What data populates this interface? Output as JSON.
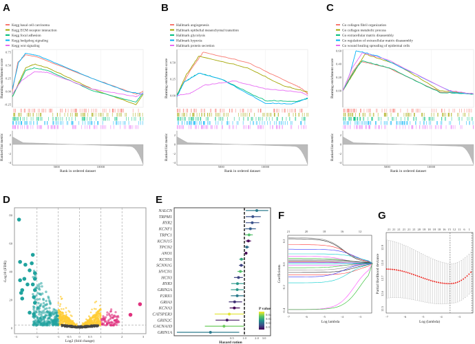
{
  "panels": {
    "a": "A",
    "b": "B",
    "c": "C",
    "d": "D",
    "e": "E",
    "f": "F",
    "g": "G"
  },
  "chart_data": [
    {
      "id": "A",
      "type": "line",
      "title": "",
      "xlabel": "Rank in ordered dataset",
      "ylabel": "Running enrichment score",
      "ylabel2": "Ranked list metric",
      "xlim": [
        0,
        14800
      ],
      "xticks": [
        5000,
        10000
      ],
      "ylim": [
        -0.3,
        0.8
      ],
      "yticks": [
        0.75,
        0.5,
        0.25,
        0,
        -0.25
      ],
      "metric_ticks": [
        2,
        0,
        -2,
        -4
      ],
      "legend_position": "top-left",
      "series": [
        {
          "name": "Kegg basal cell carcinoma",
          "color": "#f8766d",
          "points": [
            [
              0,
              0
            ],
            [
              600,
              0.55
            ],
            [
              1500,
              0.7
            ],
            [
              2800,
              0.66
            ],
            [
              9000,
              0.25
            ],
            [
              14000,
              -0.05
            ],
            [
              14800,
              0
            ]
          ]
        },
        {
          "name": "Kegg ECM receptor interaction",
          "color": "#a3a500",
          "points": [
            [
              0,
              -0.1
            ],
            [
              1500,
              0.45
            ],
            [
              2500,
              0.52
            ],
            [
              4000,
              0.45
            ],
            [
              9000,
              0.05
            ],
            [
              14000,
              -0.25
            ],
            [
              14800,
              -0.05
            ]
          ]
        },
        {
          "name": "Kegg focal adhesion",
          "color": "#00bf7d",
          "points": [
            [
              0,
              -0.1
            ],
            [
              1500,
              0.4
            ],
            [
              2500,
              0.45
            ],
            [
              4000,
              0.4
            ],
            [
              9000,
              0.02
            ],
            [
              14000,
              -0.2
            ],
            [
              14800,
              -0.02
            ]
          ]
        },
        {
          "name": "Kegg hedgehog signaling",
          "color": "#00b0f6",
          "points": [
            [
              0,
              0.05
            ],
            [
              700,
              0.55
            ],
            [
              1500,
              0.73
            ],
            [
              3000,
              0.68
            ],
            [
              9000,
              0.25
            ],
            [
              13000,
              0
            ],
            [
              14800,
              -0.05
            ]
          ]
        },
        {
          "name": "Kegg wnt signaling",
          "color": "#e76bf3",
          "points": [
            [
              0,
              -0.05
            ],
            [
              1000,
              0.2
            ],
            [
              2500,
              0.38
            ],
            [
              4000,
              0.36
            ],
            [
              9000,
              0.05
            ],
            [
              14000,
              -0.1
            ],
            [
              14800,
              -0.03
            ]
          ]
        }
      ]
    },
    {
      "id": "B",
      "type": "line",
      "title": "",
      "xlabel": "Rank in ordered dataset",
      "ylabel": "Running enrichment score",
      "ylabel2": "Ranked list metric",
      "xlim": [
        0,
        14800
      ],
      "xticks": [
        5000,
        10000
      ],
      "ylim": [
        -0.18,
        0.7
      ],
      "yticks": [
        0.5,
        0.25,
        0
      ],
      "metric_ticks": [
        2,
        0,
        -2,
        -4
      ],
      "legend_position": "top-left",
      "series": [
        {
          "name": "Hallmark angiogenesis",
          "color": "#f8766d",
          "points": [
            [
              0,
              0
            ],
            [
              1500,
              0.38
            ],
            [
              3000,
              0.66
            ],
            [
              8000,
              0.5
            ],
            [
              13000,
              0.18
            ],
            [
              14200,
              0.1
            ],
            [
              14800,
              0.02
            ]
          ]
        },
        {
          "name": "Hallmark epithelial mesenchymal transition",
          "color": "#a3a500",
          "points": [
            [
              0,
              0
            ],
            [
              1000,
              0.3
            ],
            [
              2500,
              0.6
            ],
            [
              8000,
              0.42
            ],
            [
              12000,
              0.15
            ],
            [
              14800,
              0.05
            ]
          ]
        },
        {
          "name": "Hallmark glycolysis",
          "color": "#00bf7d",
          "points": [
            [
              0,
              0
            ],
            [
              800,
              0.2
            ],
            [
              2500,
              0.34
            ],
            [
              5000,
              0.25
            ],
            [
              10000,
              -0.08
            ],
            [
              13500,
              -0.09
            ],
            [
              14800,
              -0.05
            ]
          ]
        },
        {
          "name": "Hallmark hypoxia",
          "color": "#00b0f6",
          "points": [
            [
              0,
              -0.02
            ],
            [
              800,
              0.2
            ],
            [
              2500,
              0.34
            ],
            [
              5000,
              0.25
            ],
            [
              10000,
              -0.12
            ],
            [
              13000,
              -0.13
            ],
            [
              14800,
              -0.04
            ]
          ]
        },
        {
          "name": "Hallmark protein secretion",
          "color": "#e76bf3",
          "points": [
            [
              0,
              0
            ],
            [
              1500,
              0.03
            ],
            [
              3000,
              0.15
            ],
            [
              6500,
              0.22
            ],
            [
              10000,
              0.1
            ],
            [
              14000,
              0.05
            ],
            [
              14800,
              0
            ]
          ]
        }
      ]
    },
    {
      "id": "C",
      "type": "line",
      "title": "",
      "xlabel": "Rank in ordered dataset",
      "ylabel": "Running enrichment score",
      "ylabel2": "Ranked list metric",
      "xlim": [
        0,
        14800
      ],
      "xticks": [
        5000,
        10000
      ],
      "ylim": [
        -0.25,
        0.62
      ],
      "yticks": [
        0.6,
        0.4,
        0.2,
        0
      ],
      "metric_ticks": [
        2,
        0,
        -2,
        -4
      ],
      "legend_position": "top-left",
      "series": [
        {
          "name": "Go collagen fibril organization",
          "color": "#f8766d",
          "points": [
            [
              0,
              0
            ],
            [
              1200,
              0.3
            ],
            [
              2000,
              0.44
            ],
            [
              5000,
              0.35
            ],
            [
              11000,
              -0.02
            ],
            [
              14800,
              -0.05
            ]
          ]
        },
        {
          "name": "Go collagen metabolic process",
          "color": "#a3a500",
          "points": [
            [
              0,
              0
            ],
            [
              1400,
              0.3
            ],
            [
              2500,
              0.55
            ],
            [
              6000,
              0.4
            ],
            [
              11000,
              0
            ],
            [
              14800,
              -0.05
            ]
          ]
        },
        {
          "name": "Go extracellular matrix disassembly",
          "color": "#00bf7d",
          "points": [
            [
              0,
              0
            ],
            [
              1300,
              0.3
            ],
            [
              2200,
              0.45
            ],
            [
              5500,
              0.33
            ],
            [
              11000,
              -0.03
            ],
            [
              14800,
              -0.05
            ]
          ]
        },
        {
          "name": "Go regulation of extracellular matrix disassembly",
          "color": "#00b0f6",
          "points": [
            [
              0,
              0
            ],
            [
              800,
              0.25
            ],
            [
              1500,
              0.6
            ],
            [
              4000,
              0.52
            ],
            [
              12500,
              -0.03
            ],
            [
              14800,
              -0.05
            ]
          ]
        },
        {
          "name": "Go wound healing spreading of epidermal cells",
          "color": "#e76bf3",
          "points": [
            [
              0,
              0
            ],
            [
              1100,
              0.35
            ],
            [
              2200,
              0.57
            ],
            [
              5000,
              0.47
            ],
            [
              12000,
              0
            ],
            [
              14800,
              -0.05
            ]
          ]
        }
      ]
    },
    {
      "id": "D",
      "type": "scatter",
      "title": "",
      "xlabel": "Log2 (fold change)",
      "ylabel": "-Log10 (FDR)",
      "xlim": [
        -3,
        3
      ],
      "ylim": [
        0,
        80
      ],
      "xticks": [
        -3,
        -2,
        -1,
        -0.5,
        0,
        0.5,
        1,
        2,
        3
      ],
      "yticks": [
        0,
        20,
        40,
        60,
        80
      ],
      "vlines": [
        -2,
        -1,
        0,
        1,
        2
      ],
      "hline": 1.3,
      "colors": {
        "down": "#20a39e",
        "mid": "#ffcc33",
        "ns": "#444444",
        "up": "#e0327e"
      },
      "highlighted_down": [
        [
          -2.85,
          77
        ],
        [
          -2.8,
          47
        ],
        [
          -2.55,
          45
        ],
        [
          -2.35,
          41
        ],
        [
          -2.2,
          52
        ],
        [
          -2.25,
          46
        ],
        [
          -2.1,
          39
        ],
        [
          -2.8,
          34
        ],
        [
          -2.6,
          35
        ],
        [
          -2.45,
          31
        ],
        [
          -2.2,
          31
        ],
        [
          -2.1,
          35
        ],
        [
          -2.75,
          25
        ],
        [
          -2.7,
          27
        ],
        [
          -2.7,
          21
        ],
        [
          -2.15,
          22
        ],
        [
          -2.1,
          18
        ],
        [
          -2.35,
          11
        ],
        [
          -2.15,
          10
        ],
        [
          -2.1,
          27
        ]
      ],
      "highlighted_up": [
        [
          2.85,
          17
        ],
        [
          2.4,
          9.5
        ]
      ]
    },
    {
      "id": "E",
      "type": "forest",
      "xlabel": "Hazard ration",
      "xticks": [
        0.5,
        1.0,
        2.0,
        3.0
      ],
      "ref_line": 1.0,
      "legend_title": "P value",
      "legend_ticks": [
        0.04,
        0.03,
        0.02,
        0.01
      ],
      "rows": [
        {
          "gene": "NALCN",
          "hr": 2.0,
          "lo": 1.08,
          "hi": 3.8,
          "p": 0.022
        },
        {
          "gene": "TRPM1",
          "hr": 1.6,
          "lo": 1.08,
          "hi": 2.5,
          "p": 0.015
        },
        {
          "gene": "RYR2",
          "hr": 1.55,
          "lo": 1.08,
          "hi": 2.3,
          "p": 0.015
        },
        {
          "gene": "KCNF1",
          "hr": 1.4,
          "lo": 1.05,
          "hi": 1.9,
          "p": 0.017
        },
        {
          "gene": "TRPC1",
          "hr": 1.3,
          "lo": 1.04,
          "hi": 1.6,
          "p": 0.035
        },
        {
          "gene": "KCNJ15",
          "hr": 1.25,
          "lo": 1.08,
          "hi": 1.45,
          "p": 0.004
        },
        {
          "gene": "TPCN2",
          "hr": 1.15,
          "lo": 1.04,
          "hi": 1.3,
          "p": 0.02
        },
        {
          "gene": "ANO1",
          "hr": 1.1,
          "lo": 1.03,
          "hi": 1.18,
          "p": 0.004
        },
        {
          "gene": "KCNS1",
          "hr": 0.85,
          "lo": 0.75,
          "hi": 0.97,
          "p": 0.03
        },
        {
          "gene": "SCNN1G",
          "hr": 0.84,
          "lo": 0.74,
          "hi": 0.95,
          "p": 0.013
        },
        {
          "gene": "HVCN1",
          "hr": 0.8,
          "lo": 0.68,
          "hi": 0.93,
          "p": 0.035
        },
        {
          "gene": "HCN3",
          "hr": 0.72,
          "lo": 0.56,
          "hi": 0.92,
          "p": 0.013
        },
        {
          "gene": "RYR3",
          "hr": 0.68,
          "lo": 0.48,
          "hi": 0.97,
          "p": 0.027
        },
        {
          "gene": "GRIN2A",
          "hr": 0.67,
          "lo": 0.47,
          "hi": 0.97,
          "p": 0.027
        },
        {
          "gene": "P2RX1",
          "hr": 0.67,
          "lo": 0.47,
          "hi": 0.96,
          "p": 0.022
        },
        {
          "gene": "GRIA3",
          "hr": 0.58,
          "lo": 0.42,
          "hi": 0.88,
          "p": 0.01
        },
        {
          "gene": "KCNA3",
          "hr": 0.57,
          "lo": 0.44,
          "hi": 0.78,
          "p": 0.004
        },
        {
          "gene": "CATSPER3",
          "hr": 0.43,
          "lo": 0.19,
          "hi": 0.98,
          "p": 0.046
        },
        {
          "gene": "GRIN2C",
          "hr": 0.38,
          "lo": 0.2,
          "hi": 0.76,
          "p": 0.007
        },
        {
          "gene": "CACNA1D",
          "hr": 0.32,
          "lo": 0.11,
          "hi": 0.98,
          "p": 0.038
        },
        {
          "gene": "GRIN1A",
          "hr": 0.15,
          "lo": 0.023,
          "hi": 0.75,
          "p": 0.022
        }
      ]
    },
    {
      "id": "F",
      "type": "line",
      "xlabel": "Log lambda",
      "ylabel": "Coefficients",
      "xlim": [
        -7,
        -2.3
      ],
      "ylim": [
        -0.42,
        0.25
      ],
      "xticks": [
        -7,
        -6,
        -5,
        -4,
        -3
      ],
      "yticks": [
        0.2,
        0,
        -0.2,
        -0.4
      ],
      "top_ticks": [
        "21",
        "20",
        "18",
        "16",
        "12"
      ],
      "series_start": [
        0.21,
        0.16,
        0.12,
        0.08,
        0.06,
        0.04,
        0.03,
        0.02,
        0.01,
        0.005,
        -0.005,
        -0.02,
        -0.04,
        -0.06,
        -0.08,
        -0.1,
        -0.12,
        -0.17,
        -0.4,
        -0.4,
        0.22
      ],
      "colors": [
        "#222222",
        "#ff3333",
        "#3333ff",
        "#00cccc",
        "#ff44ff",
        "#22bb22",
        "#888888"
      ]
    },
    {
      "id": "G",
      "type": "errorbar",
      "xlabel": "Log (lambda)",
      "ylabel": "Partial likelihood deviance",
      "xlim": [
        -7,
        -2.2
      ],
      "ylim": [
        12.48,
        12.98
      ],
      "xticks": [
        -7,
        -6,
        -5,
        -4,
        -3
      ],
      "yticks": [
        12.9,
        12.8,
        12.7,
        12.6,
        12.5
      ],
      "top_ticks": [
        "21",
        "21",
        "21",
        "21",
        "21",
        "21",
        "20",
        "18",
        "18",
        "18",
        "18",
        "16",
        "15",
        "12",
        "11",
        "6",
        "1"
      ],
      "vlines": [
        -3.5,
        -2.3
      ],
      "lambda_min": -3.5,
      "deviance_min": 12.665,
      "deviance_start": 12.76,
      "deviance_end": 12.74
    }
  ]
}
